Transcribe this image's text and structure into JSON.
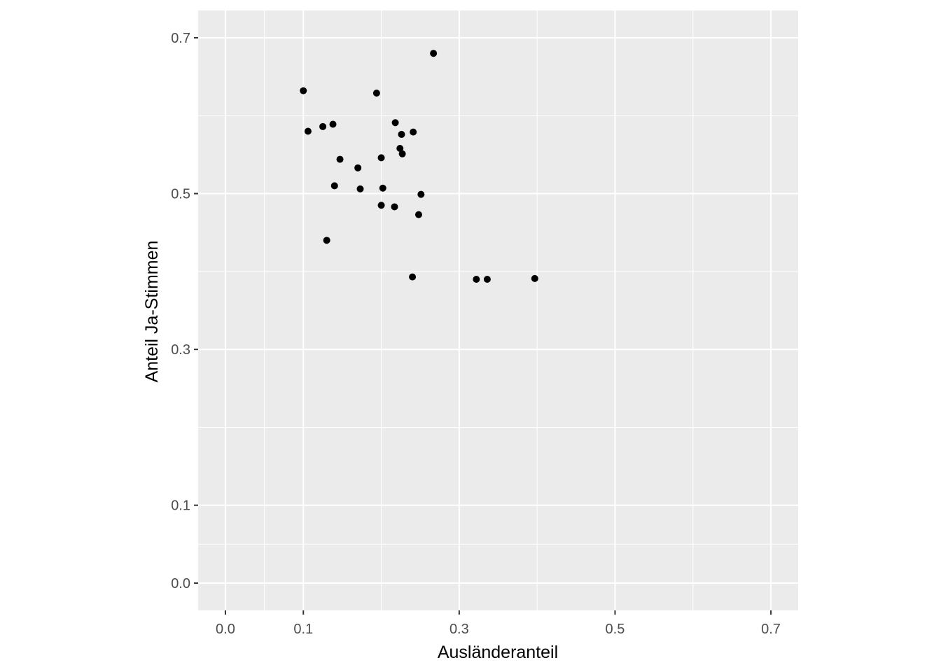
{
  "chart_data": {
    "type": "scatter",
    "xlabel": "Ausländeranteil",
    "ylabel": "Anteil Ja-Stimmen",
    "xlim": [
      -0.035,
      0.735
    ],
    "ylim": [
      -0.035,
      0.735
    ],
    "x_ticks": [
      0.0,
      0.1,
      0.3,
      0.5,
      0.7
    ],
    "x_tick_labels": [
      "0.0",
      "0.1",
      "0.3",
      "0.5",
      "0.7"
    ],
    "y_ticks": [
      0.0,
      0.1,
      0.3,
      0.5,
      0.7
    ],
    "y_tick_labels": [
      "0.0",
      "0.1",
      "0.3",
      "0.5",
      "0.7"
    ],
    "x_minor": [
      0.05,
      0.2,
      0.4,
      0.6
    ],
    "y_minor": [
      0.05,
      0.2,
      0.4,
      0.6
    ],
    "grid": true,
    "point_color": "#000000",
    "panel_color": "#ebebeb",
    "grid_color": "#ffffff",
    "points": [
      {
        "x": 0.1,
        "y": 0.632
      },
      {
        "x": 0.106,
        "y": 0.58
      },
      {
        "x": 0.125,
        "y": 0.586
      },
      {
        "x": 0.138,
        "y": 0.589
      },
      {
        "x": 0.147,
        "y": 0.544
      },
      {
        "x": 0.14,
        "y": 0.51
      },
      {
        "x": 0.13,
        "y": 0.44
      },
      {
        "x": 0.17,
        "y": 0.533
      },
      {
        "x": 0.173,
        "y": 0.506
      },
      {
        "x": 0.194,
        "y": 0.629
      },
      {
        "x": 0.2,
        "y": 0.546
      },
      {
        "x": 0.202,
        "y": 0.507
      },
      {
        "x": 0.2,
        "y": 0.485
      },
      {
        "x": 0.217,
        "y": 0.483
      },
      {
        "x": 0.218,
        "y": 0.591
      },
      {
        "x": 0.226,
        "y": 0.576
      },
      {
        "x": 0.224,
        "y": 0.558
      },
      {
        "x": 0.227,
        "y": 0.551
      },
      {
        "x": 0.241,
        "y": 0.579
      },
      {
        "x": 0.251,
        "y": 0.499
      },
      {
        "x": 0.248,
        "y": 0.473
      },
      {
        "x": 0.24,
        "y": 0.393
      },
      {
        "x": 0.267,
        "y": 0.68
      },
      {
        "x": 0.322,
        "y": 0.39
      },
      {
        "x": 0.336,
        "y": 0.39
      },
      {
        "x": 0.397,
        "y": 0.391
      }
    ]
  }
}
